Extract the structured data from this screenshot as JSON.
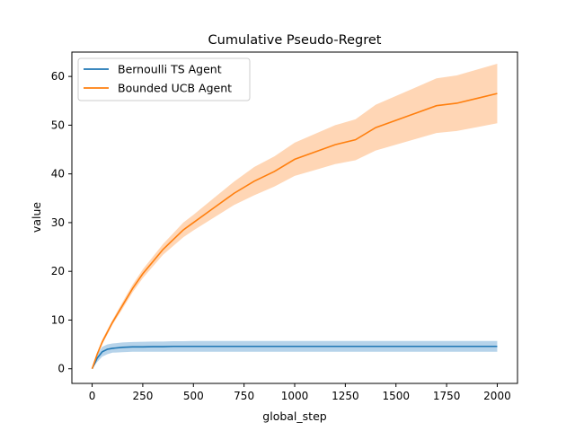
{
  "chart_data": {
    "type": "line",
    "title": "Cumulative Pseudo-Regret",
    "xlabel": "global_step",
    "ylabel": "value",
    "xlim": [
      -100,
      2100
    ],
    "ylim": [
      -3,
      65
    ],
    "xticks": [
      0,
      250,
      500,
      750,
      1000,
      1250,
      1500,
      1750,
      2000
    ],
    "yticks": [
      0,
      10,
      20,
      30,
      40,
      50,
      60
    ],
    "grid": false,
    "legend_position": "top-left",
    "x": [
      0,
      25,
      50,
      75,
      100,
      150,
      200,
      250,
      300,
      350,
      400,
      450,
      500,
      600,
      700,
      800,
      900,
      1000,
      1100,
      1200,
      1300,
      1400,
      1500,
      1600,
      1700,
      1800,
      1900,
      2000
    ],
    "series": [
      {
        "name": "Bernoulli TS Agent",
        "color": "#1f77b4",
        "band_color": "#a9cbe6",
        "values": [
          0,
          2.2,
          3.5,
          4.0,
          4.2,
          4.4,
          4.5,
          4.5,
          4.55,
          4.55,
          4.6,
          4.6,
          4.6,
          4.6,
          4.6,
          4.6,
          4.6,
          4.6,
          4.6,
          4.6,
          4.6,
          4.6,
          4.6,
          4.6,
          4.6,
          4.6,
          4.6,
          4.6
        ],
        "lower": [
          0,
          1.4,
          2.5,
          3.0,
          3.3,
          3.4,
          3.5,
          3.5,
          3.5,
          3.5,
          3.5,
          3.5,
          3.5,
          3.5,
          3.5,
          3.5,
          3.5,
          3.5,
          3.5,
          3.5,
          3.5,
          3.5,
          3.5,
          3.5,
          3.5,
          3.5,
          3.5,
          3.5
        ],
        "upper": [
          0,
          3.0,
          4.5,
          5.0,
          5.2,
          5.4,
          5.5,
          5.55,
          5.6,
          5.6,
          5.65,
          5.65,
          5.7,
          5.7,
          5.7,
          5.7,
          5.7,
          5.7,
          5.7,
          5.7,
          5.7,
          5.7,
          5.7,
          5.7,
          5.7,
          5.7,
          5.7,
          5.7
        ]
      },
      {
        "name": "Bounded UCB Agent",
        "color": "#ff7f0e",
        "band_color": "#ffcfa8",
        "values": [
          0,
          3.0,
          5.5,
          7.5,
          9.5,
          13.0,
          16.5,
          19.5,
          22.0,
          24.5,
          26.5,
          28.5,
          30.0,
          33.0,
          36.0,
          38.5,
          40.5,
          43.0,
          44.5,
          46.0,
          47.0,
          49.5,
          51.0,
          52.5,
          54.0,
          54.5,
          55.5,
          56.5
        ],
        "lower": [
          0,
          2.7,
          5.0,
          7.0,
          9.0,
          12.3,
          15.7,
          18.6,
          21.0,
          23.4,
          25.2,
          27.0,
          28.4,
          31.0,
          33.6,
          35.6,
          37.4,
          39.6,
          40.8,
          42.0,
          42.8,
          44.8,
          46.0,
          47.2,
          48.4,
          48.8,
          49.6,
          50.4
        ],
        "upper": [
          0,
          3.3,
          6.0,
          8.0,
          10.0,
          13.7,
          17.3,
          20.4,
          23.0,
          25.6,
          27.8,
          30.0,
          31.6,
          35.0,
          38.4,
          41.4,
          43.6,
          46.4,
          48.2,
          50.0,
          51.2,
          54.2,
          56.0,
          57.8,
          59.6,
          60.2,
          61.4,
          62.6
        ]
      }
    ]
  }
}
